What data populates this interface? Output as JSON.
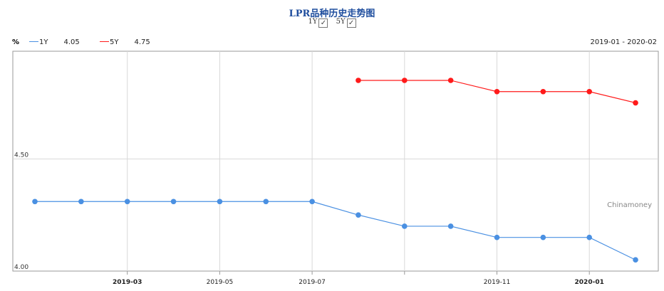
{
  "title": "LPR品种历史走势图",
  "toggles": [
    {
      "label": "1Y",
      "checked": true
    },
    {
      "label": "5Y",
      "checked": true
    }
  ],
  "unit": "%",
  "legend": [
    {
      "name": "1Y",
      "value": "4.05",
      "color": "#4a90e2"
    },
    {
      "name": "5Y",
      "value": "4.75",
      "color": "#ff1a1a"
    }
  ],
  "date_range": "2019-01 - 2020-02",
  "watermark": "Chinamoney",
  "chart_data": {
    "type": "line",
    "title": "LPR品种历史走势图",
    "ylabel": "%",
    "ylim": [
      4.0,
      4.98
    ],
    "yticks": [
      "4.00",
      "4.50"
    ],
    "xticks": [
      {
        "index": 2,
        "label": "2019-03",
        "bold": true
      },
      {
        "index": 4,
        "label": "2019-05",
        "bold": false
      },
      {
        "index": 6,
        "label": "2019-07",
        "bold": false
      },
      {
        "index": 8,
        "label": "",
        "bold": false
      },
      {
        "index": 10,
        "label": "2019-11",
        "bold": false
      },
      {
        "index": 12,
        "label": "2020-01",
        "bold": true
      }
    ],
    "x": [
      "2019-01",
      "2019-02",
      "2019-03",
      "2019-04",
      "2019-05",
      "2019-06",
      "2019-07",
      "2019-08",
      "2019-09",
      "2019-10",
      "2019-11",
      "2019-12",
      "2020-01",
      "2020-02"
    ],
    "series": [
      {
        "name": "1Y",
        "color": "#4a90e2",
        "values": [
          4.31,
          4.31,
          4.31,
          4.31,
          4.31,
          4.31,
          4.31,
          4.25,
          4.2,
          4.2,
          4.15,
          4.15,
          4.15,
          4.05
        ]
      },
      {
        "name": "5Y",
        "color": "#ff1a1a",
        "values": [
          null,
          null,
          null,
          null,
          null,
          null,
          null,
          4.85,
          4.85,
          4.85,
          4.8,
          4.8,
          4.8,
          4.75
        ]
      }
    ]
  }
}
